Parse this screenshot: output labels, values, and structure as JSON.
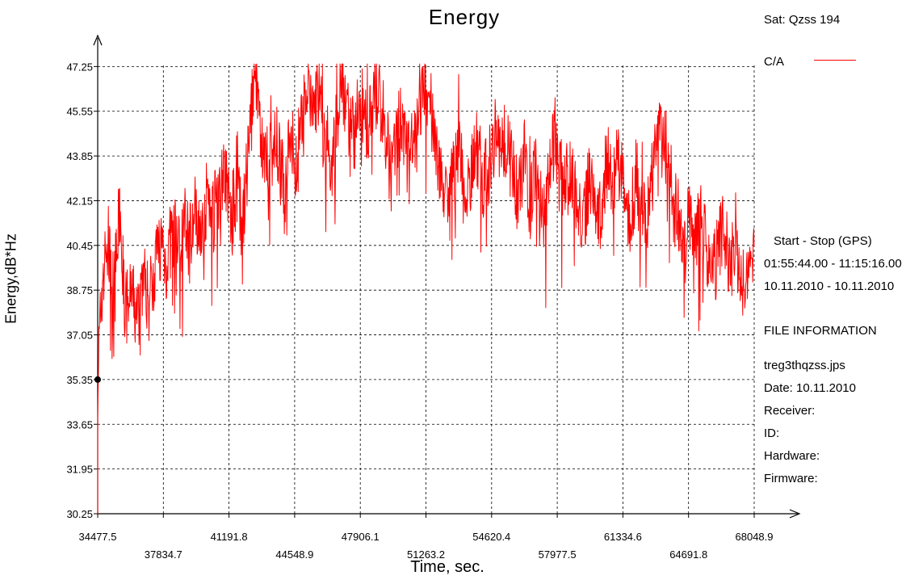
{
  "chart_data": {
    "type": "line",
    "title": "Energy",
    "xlabel": "Time, sec.",
    "ylabel": "Energy,dB*Hz",
    "xlim": [
      34477.5,
      68048.9
    ],
    "ylim": [
      30.25,
      48.95
    ],
    "x_ticks": [
      "34477.5",
      "37834.7",
      "41191.8",
      "44548.9",
      "47906.1",
      "51263.2",
      "54620.4",
      "57977.5",
      "61334.6",
      "64691.8",
      "68048.9"
    ],
    "y_ticks": [
      "30.25",
      "31.95",
      "33.65",
      "35.35",
      "37.05",
      "38.75",
      "40.45",
      "42.15",
      "43.85",
      "45.55",
      "47.25"
    ],
    "grid": true,
    "marker_value": 35.35,
    "series": [
      {
        "name": "C/A",
        "color": "#ff0000",
        "x": [
          34477.5,
          34700,
          35000,
          35300,
          35600,
          35900,
          36200,
          36500,
          36800,
          37100,
          37400,
          37700,
          38000,
          38300,
          38600,
          38900,
          39200,
          39500,
          39800,
          40100,
          40400,
          40700,
          41000,
          41300,
          41600,
          41900,
          42200,
          42500,
          42800,
          43100,
          43400,
          43700,
          44000,
          44300,
          44600,
          44900,
          45200,
          45500,
          45800,
          46100,
          46400,
          46700,
          47000,
          47300,
          47600,
          47900,
          48200,
          48500,
          48800,
          49100,
          49400,
          49700,
          50000,
          50300,
          50600,
          50900,
          51200,
          51500,
          51800,
          52100,
          52400,
          52700,
          53000,
          53300,
          53600,
          53900,
          54200,
          54500,
          54800,
          55100,
          55400,
          55700,
          56000,
          56300,
          56600,
          56900,
          57200,
          57500,
          57800,
          58100,
          58400,
          58700,
          59000,
          59300,
          59600,
          59900,
          60200,
          60500,
          60800,
          61100,
          61400,
          61700,
          62000,
          62300,
          62600,
          62900,
          63200,
          63500,
          63800,
          64100,
          64400,
          64700,
          65000,
          65300,
          65600,
          65900,
          66200,
          66500,
          66800,
          67100,
          67400,
          67700,
          68048.9
        ],
        "values": [
          35.4,
          38.9,
          40.6,
          38.5,
          41.8,
          37.9,
          38.6,
          37.6,
          39.4,
          38.2,
          39.8,
          40.6,
          39.7,
          41.1,
          40.3,
          41.4,
          40.9,
          41.8,
          41.3,
          42.4,
          41.6,
          42.9,
          43.4,
          41.5,
          42.7,
          41.0,
          44.3,
          46.8,
          44.5,
          43.7,
          44.9,
          44.1,
          42.6,
          45.0,
          43.3,
          44.8,
          46.3,
          45.6,
          46.4,
          44.1,
          42.8,
          45.2,
          46.7,
          45.3,
          44.6,
          46.2,
          44.9,
          45.7,
          46.1,
          45.2,
          43.9,
          44.6,
          45.0,
          43.8,
          44.2,
          45.3,
          46.6,
          45.7,
          44.3,
          42.9,
          41.5,
          43.7,
          44.2,
          41.8,
          43.6,
          44.1,
          42.9,
          43.5,
          44.8,
          43.9,
          44.6,
          43.2,
          42.7,
          43.8,
          42.1,
          43.6,
          41.2,
          42.8,
          44.2,
          43.1,
          42.7,
          43.5,
          42.2,
          41.0,
          43.1,
          42.5,
          41.4,
          43.8,
          42.6,
          43.9,
          42.1,
          40.9,
          43.2,
          42.3,
          41.6,
          43.5,
          44.6,
          44.1,
          42.2,
          41.6,
          40.1,
          41.3,
          40.6,
          41.7,
          40.2,
          39.1,
          40.3,
          41.1,
          39.6,
          40.5,
          38.7,
          39.9,
          40.4
        ]
      }
    ]
  },
  "legend": {
    "sat_label": "Sat: Qzss  194",
    "series_label": "C/A"
  },
  "info": {
    "start_stop_header": "Start  -  Stop  (GPS)",
    "time_range": "01:55:44.00 - 11:15:16.00",
    "date_range": "10.11.2010 - 10.11.2010",
    "file_info_header": "FILE INFORMATION",
    "file_name": "treg3thqzss.jps",
    "date": "Date: 10.11.2010",
    "receiver": "Receiver:",
    "id": "ID:",
    "hardware": "Hardware:",
    "firmware": "Firmware:"
  }
}
